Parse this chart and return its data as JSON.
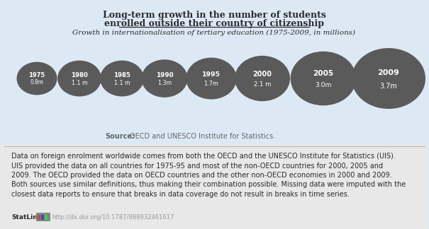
{
  "title_line1": "Long-term growth in the number of students",
  "title_line2": "enrolled outside their country of citizenship",
  "subtitle": "Growth in internationalisation of tertiary education (1975-2009, in millions)",
  "years": [
    "1975",
    "1980",
    "1985",
    "1990",
    "1995",
    "2000",
    "2005",
    "2009"
  ],
  "values": [
    0.8,
    1.1,
    1.1,
    1.3,
    1.7,
    2.1,
    3.0,
    3.7
  ],
  "labels": [
    "0.8m",
    "1.1 m",
    "1.1 m",
    "1.3m",
    "1.7m",
    "2.1 m",
    "3.0m",
    "3.7m"
  ],
  "circle_color": "#5a5a5a",
  "bg_card": "#dce9f5",
  "bg_page": "#dce9f5",
  "bg_bottom": "#e2e2e2",
  "source_bold": "Source:",
  "source_text": " OECD and UNESCO Institute for Statistics.",
  "body_text_lines": [
    "Data on foreign enrolment worldwide comes from both the OECD and the UNESCO Institute for Statistics (UIS).",
    "UIS provided the data on all countries for 1975-95 and most of the non-OECD countries for 2000, 2005 and",
    "2009. The OECD provided the data on OECD countries and the other non-OECD economies in 2000 and 2009.",
    "Both sources use similar definitions, thus making their combination possible. Missing data were imputed with the",
    "closest data reports to ensure that breaks in data coverage do not result in breaks in time series."
  ],
  "statlink_text": "http://dx.doi.org/10.1787/888932461617",
  "text_color_dark": "#2a2a2a",
  "text_color_mid": "#666666",
  "text_color_light": "#999999",
  "separator_color": "#b0b8c0"
}
